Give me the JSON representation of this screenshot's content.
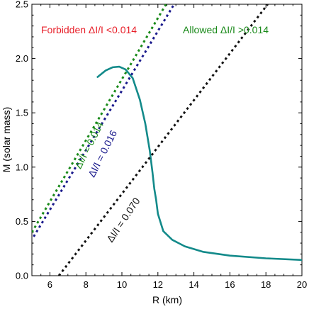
{
  "chart_data": {
    "type": "line",
    "xlabel": "R (km)",
    "ylabel": "M (solar mass)",
    "xlim": [
      5,
      20
    ],
    "ylim": [
      0,
      2.5
    ],
    "xticks": [
      6,
      8,
      10,
      12,
      14,
      16,
      18,
      20
    ],
    "yticks": [
      0.0,
      0.5,
      1.0,
      1.5,
      2.0,
      2.5
    ],
    "ytick_labels": [
      "0.0",
      "0.5",
      "1.0",
      "1.5",
      "2.0",
      "2.5"
    ],
    "colors": {
      "curve": "#138a8a",
      "line_0_014": "#1a8a1a",
      "line_0_016": "#1a1a8c",
      "line_0_070": "#111111",
      "forbidden": "#e8202a",
      "allowed": "#1a8a1a"
    },
    "series": [
      {
        "key": "curve",
        "style": "solid",
        "x": [
          8.65,
          9.1,
          9.5,
          9.85,
          10.2,
          10.6,
          11.0,
          11.3,
          11.55,
          11.7,
          11.8,
          11.9,
          12.0,
          12.3,
          12.8,
          13.5,
          14.5,
          16.0,
          18.0,
          20.0
        ],
        "y": [
          1.83,
          1.89,
          1.92,
          1.925,
          1.9,
          1.82,
          1.62,
          1.4,
          1.15,
          0.95,
          0.8,
          0.7,
          0.57,
          0.41,
          0.33,
          0.27,
          0.22,
          0.185,
          0.16,
          0.145
        ]
      },
      {
        "key": "line_0_014",
        "style": "dotted",
        "x": [
          5.0,
          12.45
        ],
        "y": [
          0.4,
          2.5
        ]
      },
      {
        "key": "line_0_016",
        "style": "dotted",
        "x": [
          5.1,
          12.9
        ],
        "y": [
          0.36,
          2.5
        ]
      },
      {
        "key": "line_0_070",
        "style": "dotted",
        "x": [
          6.5,
          18.1
        ],
        "y": [
          0.0,
          2.5
        ]
      }
    ],
    "annotations": {
      "forbidden": "Forbidden ΔI/I <0.014",
      "allowed": "Allowed ΔI/I >0.014",
      "label_0_014": "ΔI/I = 0.014",
      "label_0_016": "ΔI/I = 0.016",
      "label_0_070": "ΔI/I = 0.070"
    }
  }
}
